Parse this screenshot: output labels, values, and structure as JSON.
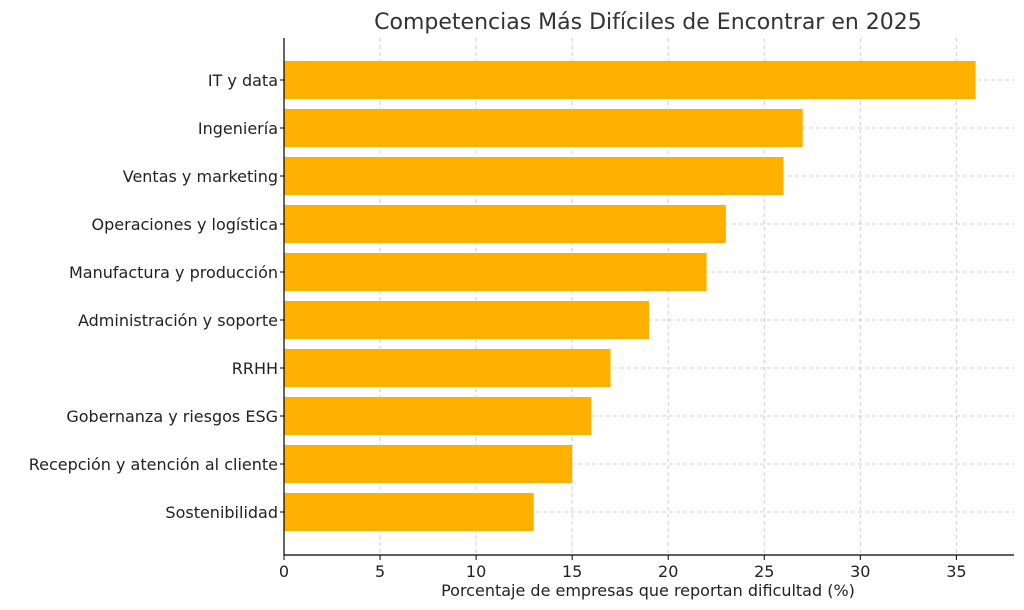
{
  "chart_data": {
    "type": "bar",
    "orientation": "horizontal",
    "title": "Competencias Más Difíciles de Encontrar en 2025",
    "xlabel": "Porcentaje de empresas que reportan dificultad (%)",
    "ylabel": "",
    "categories": [
      "IT y data",
      "Ingeniería",
      "Ventas y marketing",
      "Operaciones y logística",
      "Manufactura y producción",
      "Administración y soporte",
      "RRHH",
      "Gobernanza y riesgos ESG",
      "Recepción y atención al cliente",
      "Sostenibilidad"
    ],
    "values": [
      36,
      27,
      26,
      23,
      22,
      19,
      17,
      16,
      15,
      13
    ],
    "xlim": [
      0,
      38
    ],
    "xticks": [
      0,
      5,
      10,
      15,
      20,
      25,
      30,
      35
    ],
    "grid": true,
    "bar_color": "#FFB000"
  }
}
